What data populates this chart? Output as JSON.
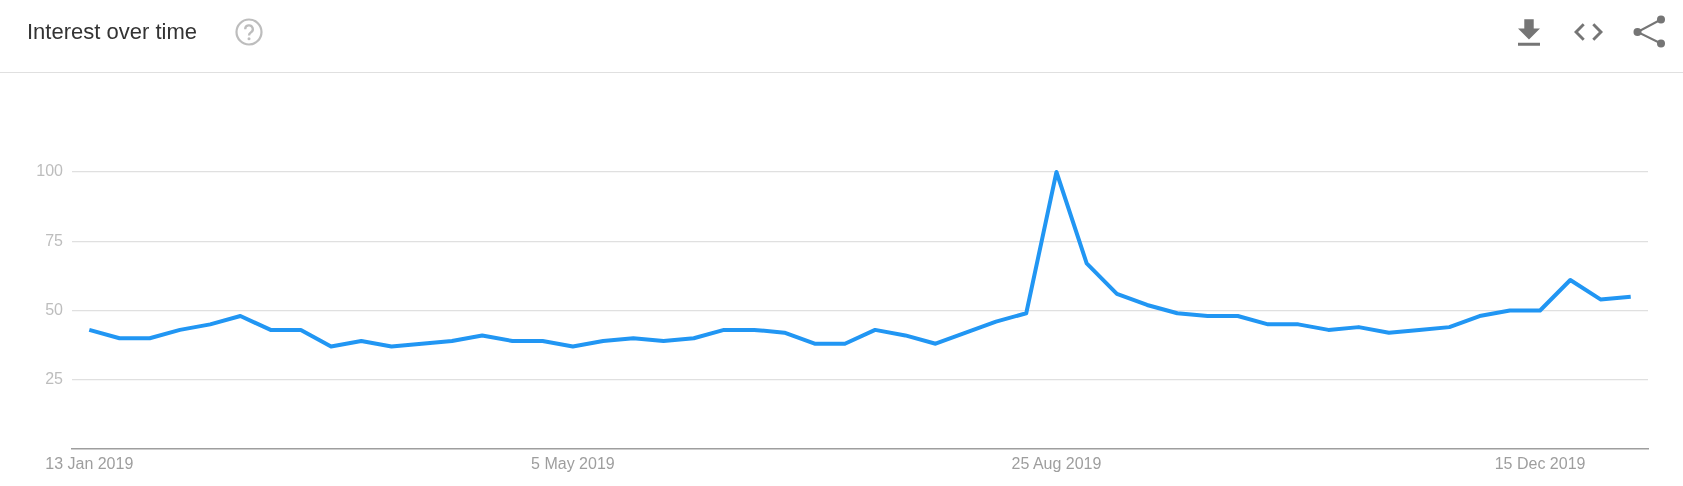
{
  "chart_data": {
    "type": "line",
    "title": "Interest over time",
    "x": [
      "2019-01-13",
      "2019-01-20",
      "2019-01-27",
      "2019-02-03",
      "2019-02-10",
      "2019-02-17",
      "2019-02-24",
      "2019-03-03",
      "2019-03-10",
      "2019-03-17",
      "2019-03-24",
      "2019-03-31",
      "2019-04-07",
      "2019-04-14",
      "2019-04-21",
      "2019-04-28",
      "2019-05-05",
      "2019-05-12",
      "2019-05-19",
      "2019-05-26",
      "2019-06-02",
      "2019-06-09",
      "2019-06-16",
      "2019-06-23",
      "2019-06-30",
      "2019-07-07",
      "2019-07-14",
      "2019-07-21",
      "2019-07-28",
      "2019-08-04",
      "2019-08-11",
      "2019-08-18",
      "2019-08-25",
      "2019-09-01",
      "2019-09-08",
      "2019-09-15",
      "2019-09-22",
      "2019-09-29",
      "2019-10-06",
      "2019-10-13",
      "2019-10-20",
      "2019-10-27",
      "2019-11-03",
      "2019-11-10",
      "2019-11-17",
      "2019-11-24",
      "2019-12-01",
      "2019-12-08",
      "2019-12-15",
      "2019-12-22",
      "2019-12-29",
      "2020-01-05"
    ],
    "values": [
      43,
      40,
      40,
      43,
      45,
      48,
      43,
      43,
      37,
      39,
      37,
      38,
      39,
      41,
      39,
      39,
      37,
      39,
      40,
      39,
      40,
      43,
      43,
      42,
      38,
      38,
      43,
      41,
      38,
      42,
      46,
      49,
      100,
      67,
      56,
      52,
      49,
      48,
      48,
      45,
      45,
      43,
      44,
      42,
      43,
      44,
      48,
      50,
      50,
      61,
      54,
      55
    ],
    "color": "#2196f3",
    "xlim": [
      "2019-01-09",
      "2020-01-09"
    ],
    "xticks": [
      {
        "value": "2019-01-13",
        "label": "13 Jan 2019"
      },
      {
        "value": "2019-05-05",
        "label": "5 May 2019"
      },
      {
        "value": "2019-08-25",
        "label": "25 Aug 2019"
      },
      {
        "value": "2019-12-15",
        "label": "15 Dec 2019"
      }
    ],
    "ylim": [
      0,
      100
    ],
    "yticks": [
      25,
      50,
      75,
      100
    ],
    "grid": "y"
  }
}
